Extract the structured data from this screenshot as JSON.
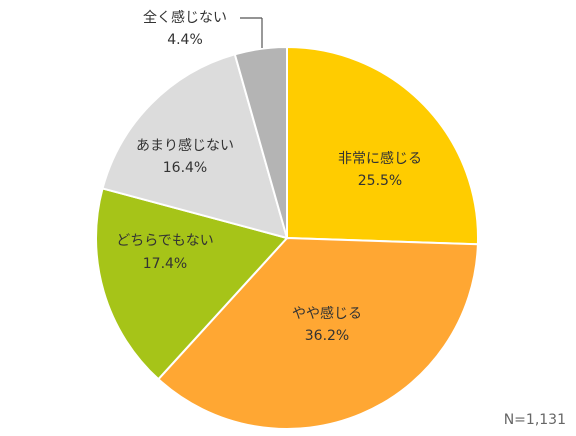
{
  "chart_data": {
    "type": "pie",
    "start_angle_deg": 0,
    "direction": "clockwise",
    "slices": [
      {
        "label": "非常に感じる",
        "value": 25.5,
        "display": "25.5%",
        "color": "#FFCC00"
      },
      {
        "label": "やや感じる",
        "value": 36.2,
        "display": "36.2%",
        "color": "#FFA733"
      },
      {
        "label": "どちらでもない",
        "value": 17.4,
        "display": "17.4%",
        "color": "#A6C418"
      },
      {
        "label": "あまり感じない",
        "value": 16.4,
        "display": "16.4%",
        "color": "#DCDCDC"
      },
      {
        "label": "全く感じない",
        "value": 4.4,
        "display": "4.4%",
        "color": "#B4B4B4"
      }
    ],
    "note": "N=1,131"
  }
}
